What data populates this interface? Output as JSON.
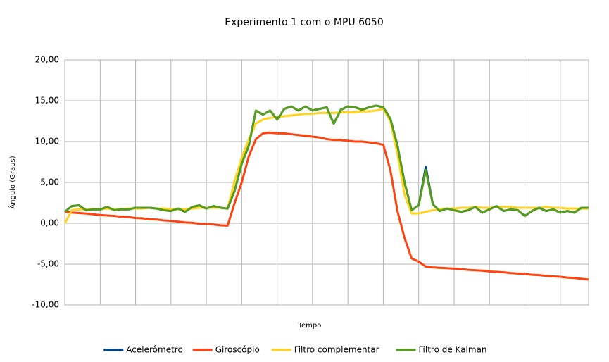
{
  "chart_data": {
    "type": "line",
    "title": "Experimento 1 com o MPU 6050",
    "x_label": "Tempo",
    "y_label": "Ângulo (Graus)",
    "categories": [
      null,
      null,
      null,
      null,
      null,
      null,
      null,
      null,
      null,
      null,
      null,
      null,
      null,
      null,
      null,
      null,
      null,
      null,
      null,
      null,
      null,
      null,
      null,
      null,
      null,
      null,
      null,
      null,
      null,
      null,
      null,
      null,
      null,
      null,
      null,
      null,
      null,
      null,
      null,
      null,
      null,
      null,
      null,
      null,
      null,
      null,
      null,
      null,
      null,
      null,
      null,
      null,
      null,
      null,
      null,
      null,
      null,
      null,
      null,
      null,
      null,
      null,
      null,
      null,
      null,
      null,
      null,
      null,
      null,
      null,
      null,
      null,
      null,
      null,
      null
    ],
    "ylim": [
      -10,
      20
    ],
    "yticks": [
      {
        "value": -10,
        "label": "-10,00"
      },
      {
        "value": -5,
        "label": "-5,00"
      },
      {
        "value": 0,
        "label": "0,00"
      },
      {
        "value": 5,
        "label": "5,00"
      },
      {
        "value": 10,
        "label": "10,00"
      },
      {
        "value": 15,
        "label": "15,00"
      },
      {
        "value": 20,
        "label": "20,00"
      }
    ],
    "grid": true,
    "legend": "bottom",
    "series": [
      {
        "name": "Acelerômetro",
        "color": "#004586",
        "values": [
          1.4,
          2.1,
          2.2,
          1.6,
          1.7,
          1.7,
          2.0,
          1.6,
          1.7,
          1.7,
          1.9,
          1.9,
          1.9,
          1.8,
          1.6,
          1.5,
          1.8,
          1.4,
          2.0,
          2.2,
          1.8,
          2.1,
          1.9,
          1.8,
          4.0,
          7.3,
          9.5,
          13.8,
          13.3,
          13.8,
          12.7,
          14.0,
          14.3,
          13.8,
          14.3,
          13.8,
          14.0,
          14.2,
          12.2,
          13.9,
          14.3,
          14.2,
          13.9,
          14.2,
          14.4,
          14.2,
          12.8,
          9.5,
          5.0,
          1.6,
          2.2,
          6.9,
          2.3,
          1.5,
          1.8,
          1.6,
          1.4,
          1.6,
          2.0,
          1.3,
          1.7,
          2.1,
          1.5,
          1.7,
          1.6,
          0.9,
          1.5,
          1.9,
          1.5,
          1.7,
          1.3,
          1.5,
          1.3,
          1.9,
          1.9
        ]
      },
      {
        "name": "Giroscópio",
        "color": "#ff420e",
        "values": [
          1.4,
          1.3,
          1.25,
          1.2,
          1.1,
          1.0,
          0.95,
          0.9,
          0.8,
          0.75,
          0.65,
          0.6,
          0.5,
          0.45,
          0.35,
          0.3,
          0.2,
          0.1,
          0.05,
          -0.05,
          -0.1,
          -0.15,
          -0.25,
          -0.3,
          2.5,
          5,
          8.2,
          10.3,
          11.0,
          11.1,
          11.0,
          11.0,
          10.9,
          10.8,
          10.7,
          10.6,
          10.5,
          10.3,
          10.2,
          10.2,
          10.1,
          10.0,
          10.0,
          9.9,
          9.8,
          9.6,
          6.5,
          1.5,
          -1.8,
          -4.3,
          -4.7,
          -5.3,
          -5.4,
          -5.45,
          -5.5,
          -5.55,
          -5.6,
          -5.7,
          -5.75,
          -5.8,
          -5.9,
          -5.95,
          -6.0,
          -6.1,
          -6.15,
          -6.2,
          -6.3,
          -6.35,
          -6.45,
          -6.5,
          -6.55,
          -6.65,
          -6.7,
          -6.8,
          -6.9
        ]
      },
      {
        "name": "Filtro complementar",
        "color": "#ffd320",
        "values": [
          0,
          1.6,
          1.7,
          1.7,
          1.7,
          1.7,
          1.8,
          1.7,
          1.7,
          1.8,
          1.8,
          1.8,
          1.9,
          1.8,
          1.8,
          1.7,
          1.7,
          1.7,
          1.8,
          1.9,
          1.9,
          1.9,
          1.9,
          1.8,
          5.2,
          8.0,
          10.3,
          12.2,
          12.7,
          12.9,
          13.0,
          13.1,
          13.2,
          13.3,
          13.4,
          13.4,
          13.5,
          13.5,
          13.5,
          13.6,
          13.6,
          13.6,
          13.7,
          13.7,
          13.8,
          14.0,
          12.5,
          8.5,
          3.5,
          1.2,
          1.2,
          1.4,
          1.6,
          1.7,
          1.8,
          1.8,
          1.9,
          1.9,
          2.0,
          1.9,
          1.9,
          2.0,
          2.0,
          2.0,
          1.9,
          1.9,
          1.9,
          1.9,
          2.0,
          1.9,
          1.9,
          1.8,
          1.8,
          1.8,
          1.8
        ]
      },
      {
        "name": "Filtro de Kalman",
        "color": "#579d1c",
        "values": [
          1.4,
          2.1,
          2.2,
          1.6,
          1.7,
          1.7,
          2.0,
          1.6,
          1.7,
          1.7,
          1.9,
          1.9,
          1.9,
          1.8,
          1.6,
          1.5,
          1.8,
          1.4,
          2.0,
          2.2,
          1.8,
          2.1,
          1.9,
          1.8,
          4.0,
          7.3,
          9.5,
          13.8,
          13.3,
          13.8,
          12.7,
          14.0,
          14.3,
          13.8,
          14.3,
          13.8,
          14.0,
          14.2,
          12.2,
          13.9,
          14.3,
          14.2,
          13.9,
          14.2,
          14.4,
          14.2,
          12.8,
          9.5,
          5.0,
          1.6,
          2.2,
          6.5,
          2.3,
          1.5,
          1.8,
          1.6,
          1.4,
          1.6,
          2.0,
          1.3,
          1.7,
          2.1,
          1.5,
          1.7,
          1.6,
          0.9,
          1.5,
          1.9,
          1.5,
          1.7,
          1.3,
          1.5,
          1.3,
          1.9,
          1.9
        ]
      }
    ]
  }
}
